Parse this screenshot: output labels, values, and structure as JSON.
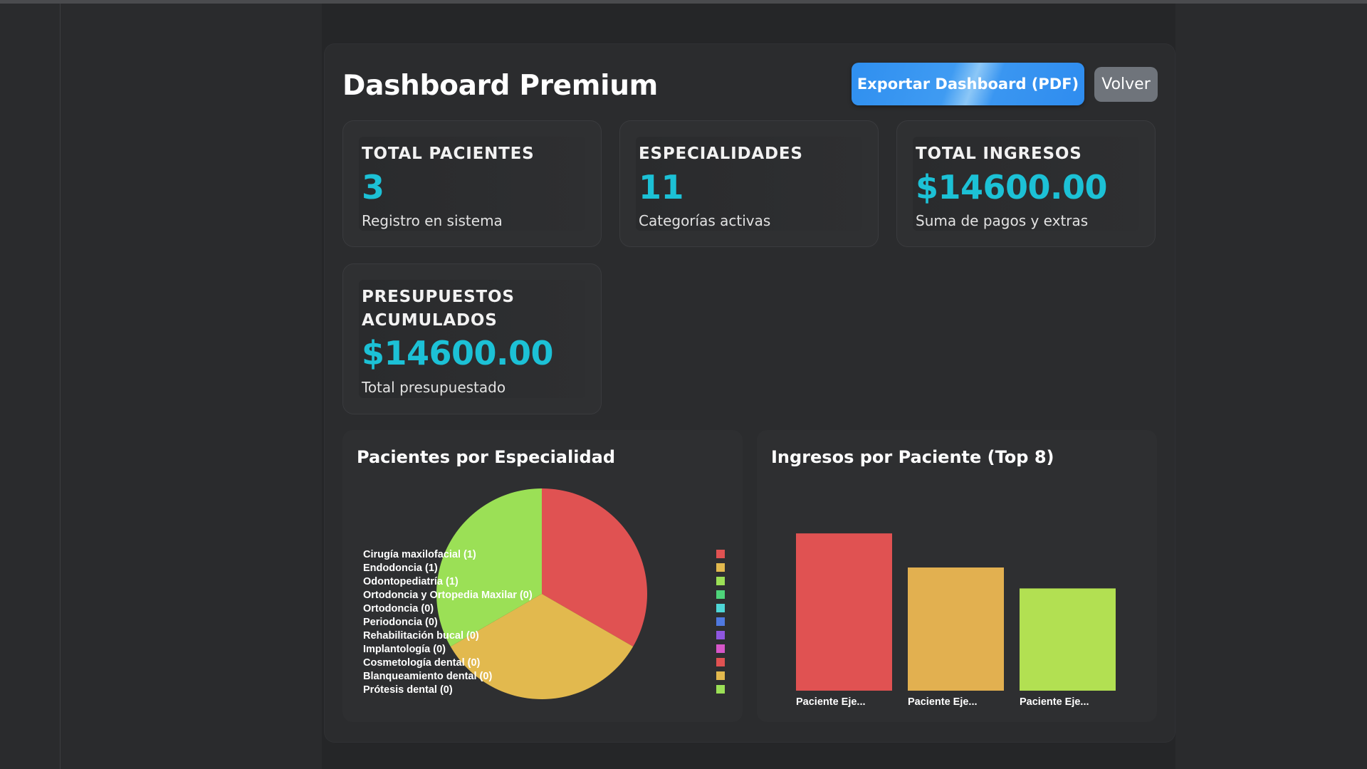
{
  "header": {
    "title": "Dashboard Premium",
    "export_label": "Exportar Dashboard (PDF)",
    "back_label": "Volver"
  },
  "stats": [
    {
      "label": "TOTAL PACIENTES",
      "value": "3",
      "sub": "Registro en sistema"
    },
    {
      "label": "ESPECIALIDADES",
      "value": "11",
      "sub": "Categorías activas"
    },
    {
      "label": "TOTAL INGRESOS",
      "value": "$14600.00",
      "sub": "Suma de pagos y extras"
    },
    {
      "label": "PRESUPUESTOS ACUMULADOS",
      "value": "$14600.00",
      "sub": "Total presupuestado"
    }
  ],
  "chart_data": [
    {
      "type": "pie",
      "title": "Pacientes por Especialidad",
      "legend_position": "left",
      "labels": [
        "Cirugía maxilofacial (1)",
        "Endodoncia (1)",
        "Odontopediatría (1)",
        "Ortodoncia y Ortopedia Maxilar (0)",
        "Ortodoncia (0)",
        "Periodoncia (0)",
        "Rehabilitación bucal (0)",
        "Implantología (0)",
        "Cosmetología dental (0)",
        "Blanqueamiento dental (0)",
        "Prótesis dental (0)"
      ],
      "values": [
        1,
        1,
        1,
        0,
        0,
        0,
        0,
        0,
        0,
        0,
        0
      ],
      "colors": [
        "#e05252",
        "#e2b94e",
        "#9be056",
        "#4ed47a",
        "#4ed6d6",
        "#4f79e0",
        "#8f56e0",
        "#d656c8",
        "#e05252",
        "#e2b94e",
        "#9be056"
      ]
    },
    {
      "type": "bar",
      "title": "Ingresos por Paciente (Top 8)",
      "categories": [
        "Paciente Eje...",
        "Paciente Eje...",
        "Paciente Eje..."
      ],
      "values": [
        6000,
        4700,
        3900
      ],
      "ylim": [
        0,
        6900
      ],
      "colors": [
        "#e05252",
        "#e2b050",
        "#b2e052"
      ]
    }
  ]
}
